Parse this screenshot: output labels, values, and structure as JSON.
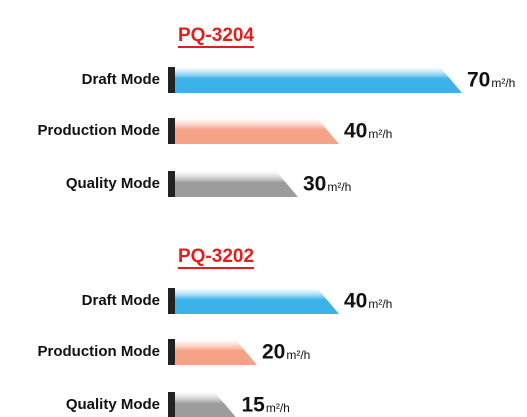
{
  "chart_data": [
    {
      "type": "bar",
      "title": "PQ-3204",
      "unit": "m²/h",
      "categories": [
        "Draft Mode",
        "Production Mode",
        "Quality Mode"
      ],
      "values": [
        70,
        40,
        30
      ],
      "colors": [
        "#3cb2e8",
        "#f6a287",
        "#9c9c9c"
      ]
    },
    {
      "type": "bar",
      "title": "PQ-3202",
      "unit": "m²/h",
      "categories": [
        "Draft Mode",
        "Production Mode",
        "Quality Mode"
      ],
      "values": [
        40,
        20,
        15
      ],
      "colors": [
        "#3cb2e8",
        "#f6a287",
        "#9c9c9c"
      ]
    }
  ]
}
